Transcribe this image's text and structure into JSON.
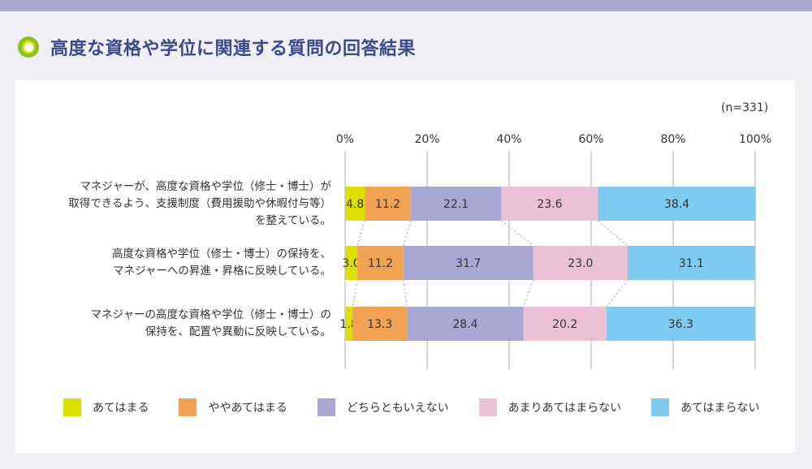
{
  "header": {
    "title": "高度な資格や学位に関連する質問の回答結果",
    "icon": "ring-bullet-icon"
  },
  "chart_data": {
    "type": "bar",
    "orientation": "horizontal",
    "stacked": true,
    "title": "高度な資格や学位に関連する質問の回答結果",
    "sample_note": "(n=331)",
    "xlabel": "",
    "ylabel": "",
    "xlim": [
      0,
      100
    ],
    "x_ticks": [
      "0%",
      "20%",
      "40%",
      "60%",
      "80%",
      "100%"
    ],
    "x_tick_values": [
      0,
      20,
      40,
      60,
      80,
      100
    ],
    "grid": true,
    "legend_position": "bottom",
    "categories": [
      [
        "マネジャーが、高度な資格や学位（修士・博士）が",
        "取得できるよう、支援制度（費用援助や休暇付与等）",
        "を整えている。"
      ],
      [
        "高度な資格や学位（修士・博士）の保持を、",
        "マネジャーへの昇進・昇格に反映している。"
      ],
      [
        "マネジャーの高度な資格や学位（修士・博士）の",
        "保持を、配置や異動に反映している。"
      ]
    ],
    "series": [
      {
        "name": "あてはまる",
        "color": "#dce000",
        "values": [
          4.8,
          3.0,
          1.8
        ]
      },
      {
        "name": "ややあてはまる",
        "color": "#f2a253",
        "values": [
          11.2,
          11.2,
          13.3
        ]
      },
      {
        "name": "どちらともいえない",
        "color": "#a9a7d4",
        "values": [
          22.1,
          31.7,
          28.4
        ]
      },
      {
        "name": "あまりあてはまらない",
        "color": "#ebc0d5",
        "values": [
          23.6,
          23.0,
          20.2
        ]
      },
      {
        "name": "あてはまらない",
        "color": "#7ecbf2",
        "values": [
          38.4,
          31.1,
          36.3
        ]
      }
    ],
    "connector_lines": "dotted"
  }
}
